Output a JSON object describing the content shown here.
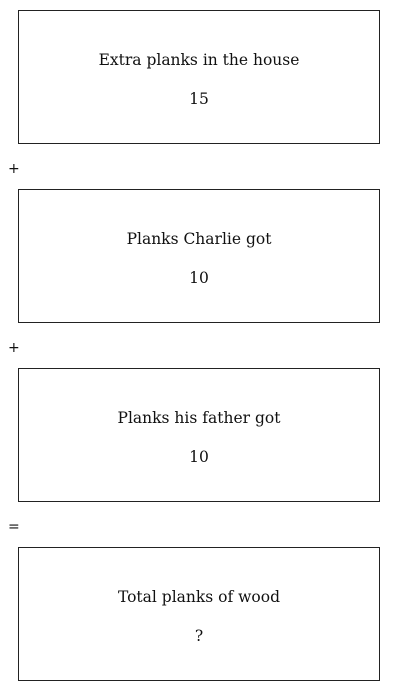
{
  "boxes": [
    {
      "label": "Extra planks in the house",
      "value": "15"
    },
    {
      "label": "Planks Charlie got",
      "value": "10"
    },
    {
      "label": "Planks his father got",
      "value": "10"
    },
    {
      "label": "Total planks of wood",
      "value": "?"
    }
  ],
  "operators": [
    "+",
    "+",
    "="
  ]
}
